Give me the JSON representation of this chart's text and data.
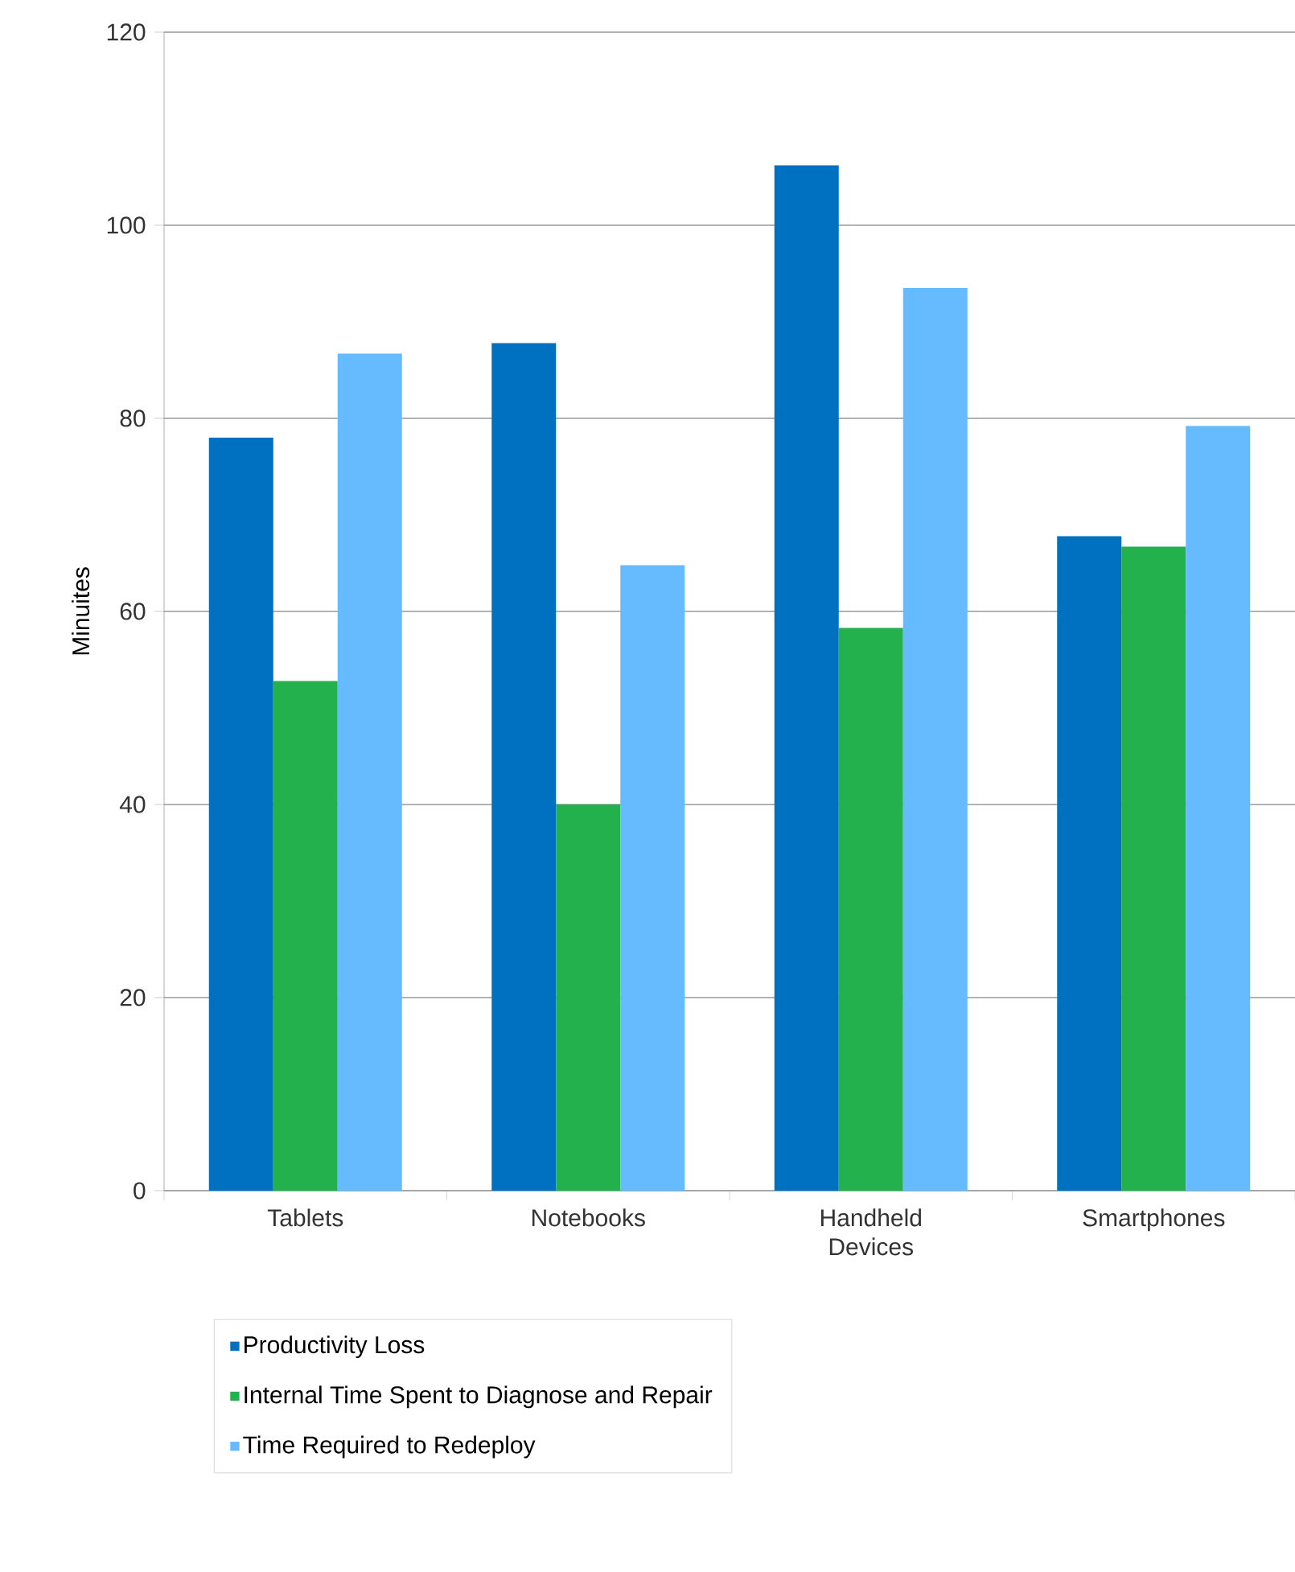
{
  "chart_data": {
    "type": "bar",
    "ylabel": "Minuites",
    "categories": [
      "Tablets",
      "Notebooks",
      "Handheld Devices",
      "Smartphones"
    ],
    "series": [
      {
        "name": "Productivity Loss",
        "color": "#0070c0",
        "values": [
          78,
          87.8,
          106.2,
          67.8
        ]
      },
      {
        "name": "Internal Time Spent to Diagnose and Repair",
        "color": "#22b14c",
        "values": [
          52.8,
          40,
          58.3,
          66.7
        ]
      },
      {
        "name": "Time Required to Redeploy",
        "color": "#66bbff",
        "values": [
          86.7,
          64.8,
          93.5,
          79.2
        ]
      }
    ],
    "ylim": [
      0,
      120
    ],
    "yticks": [
      0,
      20,
      40,
      60,
      80,
      100,
      120
    ],
    "grid": "y",
    "legend": "bottom"
  }
}
